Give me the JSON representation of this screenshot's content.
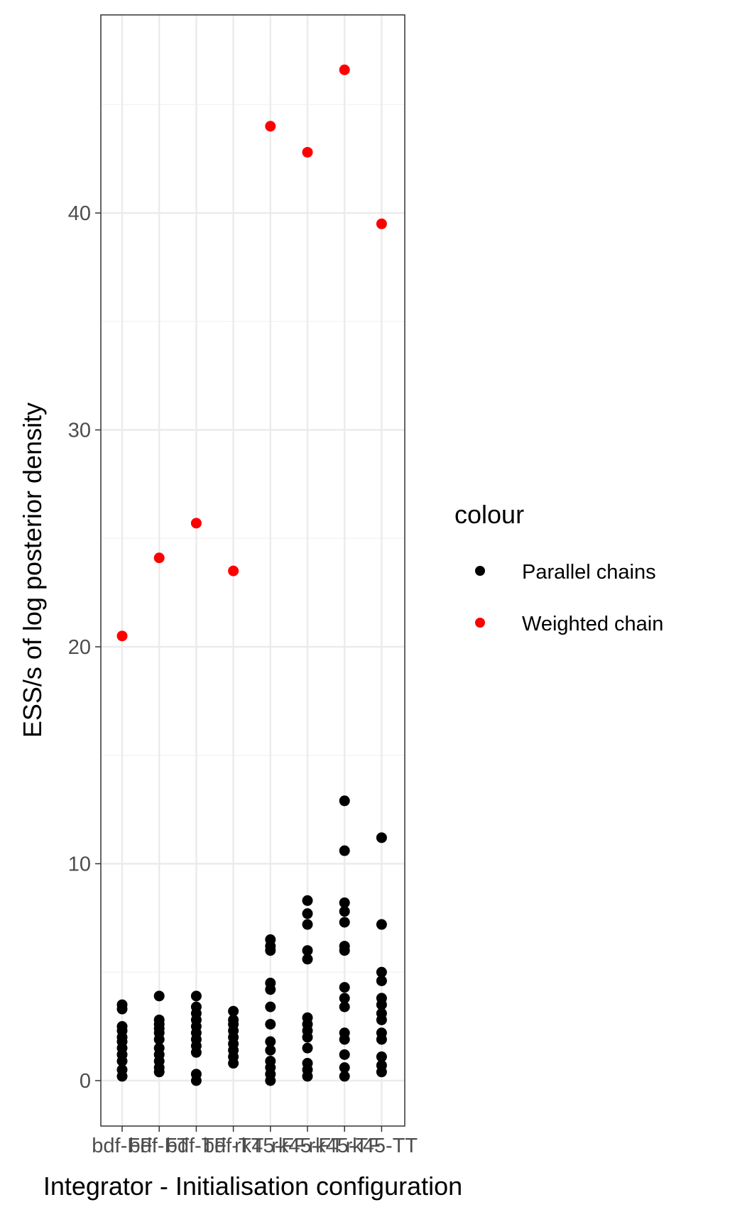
{
  "chart_data": {
    "type": "scatter",
    "xlabel": "Integrator - Initialisation configuration",
    "ylabel": "ESS/s of log posterior density",
    "categories": [
      "bdf-FF",
      "bdf-FT",
      "bdf-TF",
      "bdf-TT",
      "rk45-FF",
      "rk45-FT",
      "rk45-TF",
      "rk45-TT"
    ],
    "ylim": [
      -2.2,
      49
    ],
    "yticks": [
      0,
      10,
      20,
      30,
      40
    ],
    "grid": true,
    "legend": {
      "title": "colour",
      "position": "right",
      "entries": [
        {
          "label": "Parallel chains",
          "color": "#000000"
        },
        {
          "label": "Weighted chain",
          "color": "#ff0000"
        }
      ]
    },
    "series": [
      {
        "name": "Parallel chains",
        "color": "#000000",
        "values": [
          [
            0.2,
            0.5,
            0.9,
            1.2,
            1.5,
            1.8,
            2.0,
            2.3,
            2.5,
            3.3,
            3.5
          ],
          [
            0.4,
            0.6,
            0.9,
            1.2,
            1.5,
            1.9,
            2.2,
            2.4,
            2.6,
            2.8,
            3.9
          ],
          [
            0.0,
            0.3,
            1.3,
            1.6,
            1.9,
            2.2,
            2.5,
            2.8,
            3.1,
            3.4,
            3.9
          ],
          [
            0.8,
            1.1,
            1.4,
            1.7,
            2.0,
            2.3,
            2.6,
            2.8,
            3.2
          ],
          [
            0.0,
            0.3,
            0.6,
            0.9,
            1.4,
            1.8,
            2.6,
            3.4,
            4.2,
            4.5,
            6.0,
            6.2,
            6.5
          ],
          [
            0.2,
            0.5,
            0.8,
            1.5,
            2.0,
            2.3,
            2.6,
            2.9,
            5.6,
            6.0,
            7.2,
            7.7,
            8.3
          ],
          [
            0.2,
            0.6,
            1.2,
            1.9,
            2.2,
            3.4,
            3.8,
            4.3,
            6.0,
            6.2,
            7.3,
            7.8,
            8.2,
            10.6,
            12.9
          ],
          [
            0.4,
            0.7,
            1.1,
            1.9,
            2.2,
            2.8,
            3.1,
            3.5,
            3.8,
            4.6,
            5.0,
            7.2,
            11.2
          ]
        ]
      },
      {
        "name": "Weighted chain",
        "color": "#ff0000",
        "values": [
          [
            20.5
          ],
          [
            24.1
          ],
          [
            25.7
          ],
          [
            23.5
          ],
          [
            44.0
          ],
          [
            42.8
          ],
          [
            46.6
          ],
          [
            39.5
          ]
        ]
      }
    ]
  }
}
